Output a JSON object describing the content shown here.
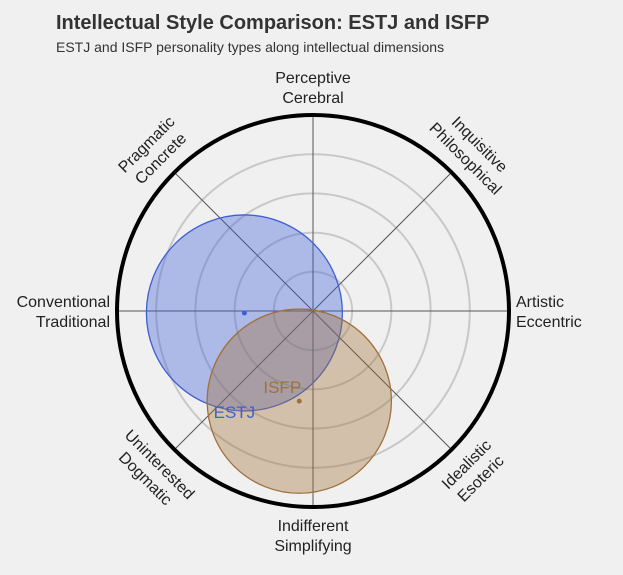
{
  "header": {
    "title": "Intellectual Style Comparison: ESTJ and ISFP",
    "subtitle": "ESTJ and ISFP personality types along intellectual dimensions"
  },
  "chart_data": {
    "type": "scatter",
    "title": "Intellectual Style Comparison: ESTJ and ISFP",
    "subtitle": "ESTJ and ISFP personality types along intellectual dimensions",
    "xlim": [
      -100,
      100
    ],
    "ylim": [
      -100,
      100
    ],
    "grid": true,
    "axis_labels": {
      "top": [
        "Perceptive",
        "Cerebral"
      ],
      "top_right": [
        "Inquisitive",
        "Philosophical"
      ],
      "right": [
        "Artistic",
        "Eccentric"
      ],
      "bottom_right": [
        "Idealistic",
        "Esoteric"
      ],
      "bottom": [
        "Indifferent",
        "Simplifying"
      ],
      "bottom_left": [
        "Uninterested",
        "Dogmatic"
      ],
      "left": [
        "Conventional",
        "Traditional"
      ],
      "top_left": [
        "Pragmatic",
        "Concrete"
      ]
    },
    "series": [
      {
        "name": "ESTJ",
        "x": -35,
        "y": -1,
        "radius": 50,
        "color": "#3f5fd4"
      },
      {
        "name": "ISFP",
        "x": -7,
        "y": -46,
        "radius": 47,
        "color": "#a0703a"
      }
    ]
  }
}
